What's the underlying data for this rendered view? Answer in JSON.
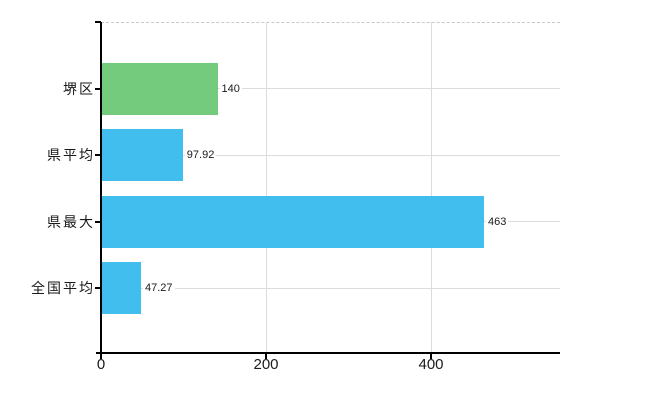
{
  "chart_data": {
    "type": "bar",
    "orientation": "horizontal",
    "title": "",
    "categories": [
      "堺区",
      "県平均",
      "県最大",
      "全国平均"
    ],
    "values": [
      140,
      97.92,
      463,
      47.27
    ],
    "value_labels": [
      "140",
      "97.92",
      "463",
      "47.27"
    ],
    "bar_colors": [
      "#74cb7e",
      "#41bdee",
      "#41bdee",
      "#41bdee"
    ],
    "x_ticks": [
      0,
      200,
      400
    ],
    "x_tick_labels": [
      "0",
      "200",
      "400"
    ],
    "xlim": [
      0,
      557
    ],
    "grid": true,
    "legend": false,
    "axis_color": "#000000",
    "gridline_color": "#dcdcdc",
    "top_border_style": "dashed",
    "text_color": "#1a1a1a"
  }
}
